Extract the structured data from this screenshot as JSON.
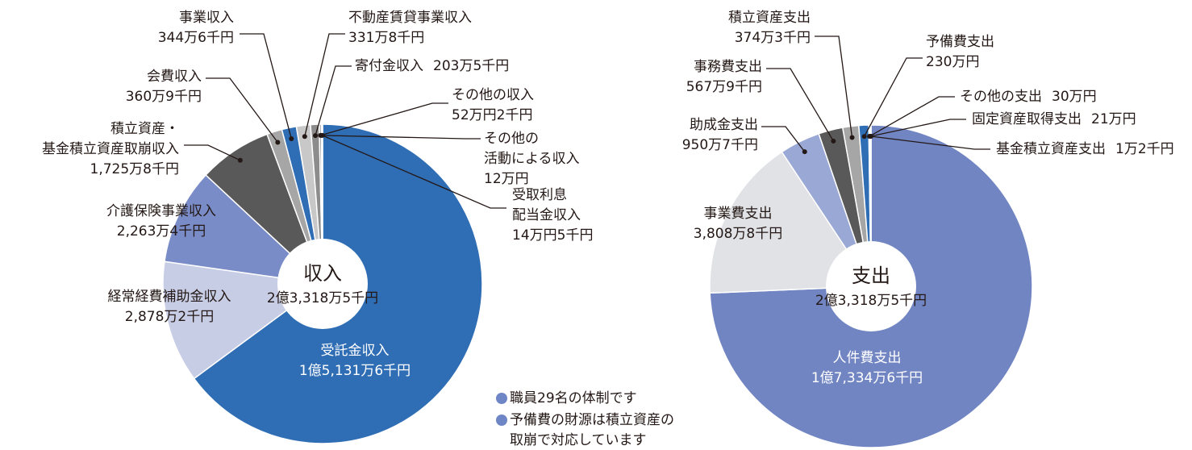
{
  "chart_data": [
    {
      "type": "pie",
      "center_title": "収入",
      "center_label": "2億3,318万5千円",
      "categories": [
        "受託金収入",
        "経常経費補助金収入",
        "介護保険事業収入",
        "積立資産・\n基金積立資産取崩収入",
        "会費収入",
        "事業収入",
        "不動産賃貸事業収入",
        "寄付金収入",
        "その他の収入",
        "その他の\n活動による収入",
        "受取利息\n配当金収入"
      ],
      "values": [
        151316,
        28782,
        22634,
        17258,
        3609,
        3446,
        3318,
        2035,
        522,
        120,
        145
      ],
      "value_labels": [
        "1億5,131万6千円",
        "2,878万2千円",
        "2,263万4千円",
        "1,725万8千円",
        "360万9千円",
        "344万6千円",
        "331万8千円",
        "203万5千円",
        "52万円2千円",
        "12万円",
        "14万円5千円"
      ],
      "colors": [
        "#2f6db5",
        "#c8cde6",
        "#7a8cc8",
        "#595959",
        "#a6a6a6",
        "#2f6db5",
        "#c8c8c8",
        "#8c8c8c",
        "#a6a6a6",
        "#595959",
        "#404040"
      ]
    },
    {
      "type": "pie",
      "center_title": "支出",
      "center_label": "2億3,318万5千円",
      "categories": [
        "人件費支出",
        "事業費支出",
        "助成金支出",
        "事務費支出",
        "積立資産支出",
        "予備費支出",
        "その他の支出",
        "固定資産取得支出",
        "基金積立資産支出"
      ],
      "values": [
        173346,
        38088,
        9507,
        5679,
        3743,
        2300,
        300,
        210,
        12
      ],
      "value_labels": [
        "1億7,334万6千円",
        "3,808万8千円",
        "950万7千円",
        "567万9千円",
        "374万3千円",
        "230万円",
        "30万円",
        "21万円",
        "1万2千円"
      ],
      "colors": [
        "#7185c2",
        "#e0e2e6",
        "#9aa8d6",
        "#595959",
        "#a6a6a6",
        "#2f6db5",
        "#404040",
        "#7f7f7f",
        "#000000"
      ]
    }
  ],
  "notes": [
    "職員29名の体制です",
    "予備費の財源は積立資産の\n取崩で対応しています"
  ]
}
